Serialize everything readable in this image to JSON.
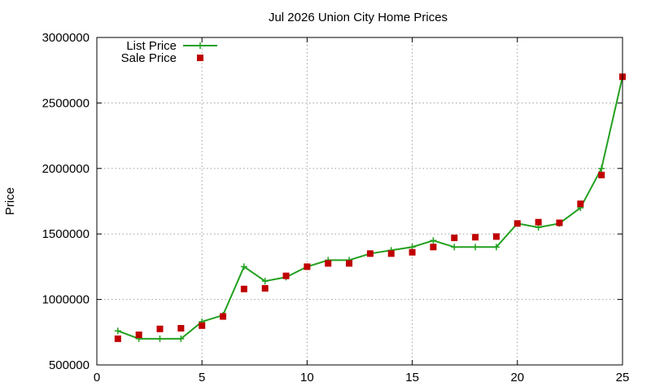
{
  "chart_data": {
    "type": "line",
    "title": "Jul 2026 Union City Home Prices",
    "xlabel": "",
    "ylabel": "Price",
    "xlim": [
      0,
      25
    ],
    "ylim": [
      500000,
      3000000
    ],
    "xticks": [
      0,
      5,
      10,
      15,
      20,
      25
    ],
    "yticks": [
      500000,
      1000000,
      1500000,
      2000000,
      2500000,
      3000000
    ],
    "grid": true,
    "legend_position": "top-left",
    "series": [
      {
        "name": "List Price",
        "style": "line+cross",
        "color": "#22a01f",
        "x": [
          1,
          2,
          3,
          4,
          5,
          6,
          7,
          8,
          9,
          10,
          11,
          12,
          13,
          14,
          15,
          16,
          17,
          18,
          19,
          20,
          21,
          22,
          23,
          24,
          25
        ],
        "y": [
          760000,
          700000,
          700000,
          700000,
          830000,
          880000,
          1250000,
          1140000,
          1170000,
          1250000,
          1300000,
          1300000,
          1350000,
          1375000,
          1400000,
          1450000,
          1400000,
          1400000,
          1400000,
          1580000,
          1550000,
          1580000,
          1700000,
          2000000,
          2700000
        ]
      },
      {
        "name": "Sale Price",
        "style": "square",
        "color": "#c00000",
        "x": [
          1,
          2,
          3,
          4,
          5,
          6,
          7,
          8,
          9,
          10,
          11,
          12,
          13,
          14,
          15,
          16,
          17,
          18,
          19,
          20,
          21,
          22,
          23,
          24,
          25
        ],
        "y": [
          700000,
          730000,
          775000,
          780000,
          800000,
          870000,
          1080000,
          1085000,
          1180000,
          1250000,
          1275000,
          1275000,
          1350000,
          1350000,
          1360000,
          1400000,
          1470000,
          1475000,
          1480000,
          1580000,
          1590000,
          1585000,
          1730000,
          1950000,
          2700000
        ]
      }
    ]
  }
}
